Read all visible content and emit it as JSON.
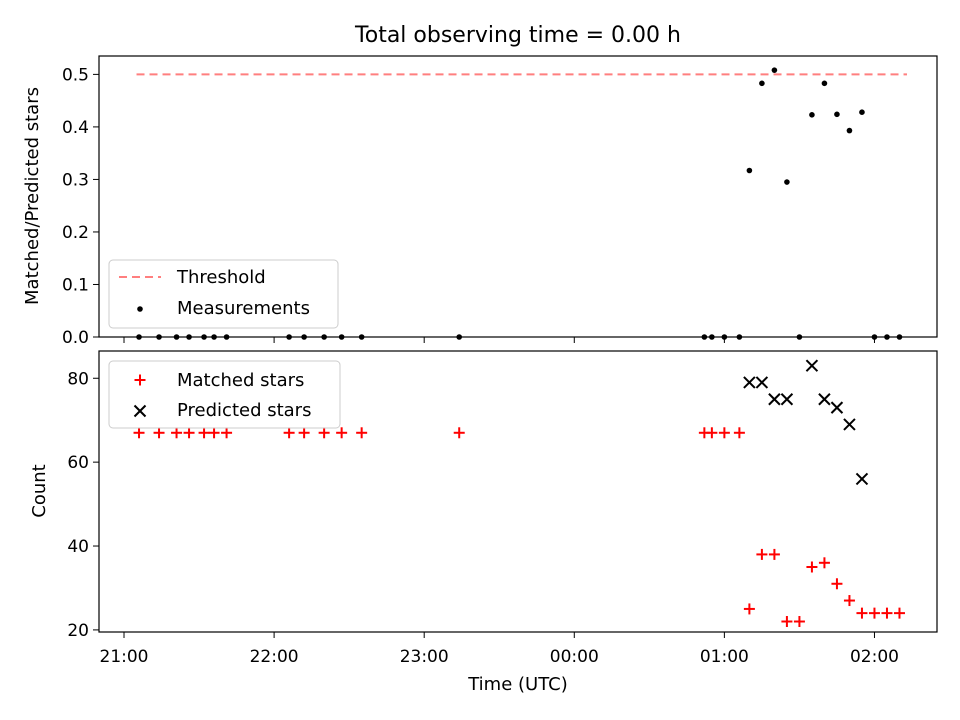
{
  "chart_data": [
    {
      "type": "scatter",
      "title": "Total observing time = 0.00 h",
      "xlabel": "",
      "ylabel": "Matched/Predicted stars",
      "ylim": [
        0,
        0.535
      ],
      "yticks": [
        0.0,
        0.1,
        0.2,
        0.3,
        0.4,
        0.5
      ],
      "ytick_labels": [
        "0.0",
        "0.1",
        "0.2",
        "0.3",
        "0.4",
        "0.5"
      ],
      "legend_position": "lower-left",
      "threshold": {
        "name": "Threshold",
        "y": 0.5,
        "x_start": "21:05",
        "x_end": "02:13",
        "color": "#ff7f7f",
        "style": "dashed"
      },
      "series": [
        {
          "name": "Measurements",
          "color": "#000000",
          "marker": "dot",
          "x": [
            "21:06",
            "21:14",
            "21:21",
            "21:26",
            "21:32",
            "21:36",
            "21:41",
            "22:06",
            "22:12",
            "22:20",
            "22:27",
            "22:35",
            "23:14",
            "00:52",
            "00:55",
            "01:00",
            "01:06",
            "01:10",
            "01:15",
            "01:20",
            "01:25",
            "01:30",
            "01:35",
            "01:40",
            "01:45",
            "01:50",
            "01:55",
            "02:00",
            "02:05",
            "02:10"
          ],
          "y": [
            0,
            0,
            0,
            0,
            0,
            0,
            0,
            0,
            0,
            0,
            0,
            0,
            0,
            0,
            0,
            0,
            0,
            0.317,
            0.483,
            0.508,
            0.295,
            0,
            0.423,
            0.483,
            0.424,
            0.393,
            0.428,
            0,
            0,
            0
          ]
        }
      ]
    },
    {
      "type": "scatter",
      "xlabel": "Time (UTC)",
      "ylabel": "Count",
      "ylim": [
        19.5,
        86.5
      ],
      "yticks": [
        20,
        40,
        60,
        80
      ],
      "ytick_labels": [
        "20",
        "40",
        "60",
        "80"
      ],
      "xticks": [
        "21:00",
        "22:00",
        "23:00",
        "00:00",
        "01:00",
        "02:00"
      ],
      "xtick_labels": [
        "21:00",
        "22:00",
        "23:00",
        "00:00",
        "01:00",
        "02:00"
      ],
      "xlim": [
        "20:50",
        "02:25"
      ],
      "legend_position": "upper-left",
      "series": [
        {
          "name": "Matched stars",
          "color": "#ff0000",
          "marker": "plus",
          "x": [
            "21:06",
            "21:14",
            "21:21",
            "21:26",
            "21:32",
            "21:36",
            "21:41",
            "22:06",
            "22:12",
            "22:20",
            "22:27",
            "22:35",
            "23:14",
            "00:52",
            "00:55",
            "01:00",
            "01:06",
            "01:10",
            "01:15",
            "01:20",
            "01:25",
            "01:30",
            "01:35",
            "01:40",
            "01:45",
            "01:50",
            "01:55",
            "02:00",
            "02:05",
            "02:10"
          ],
          "y": [
            67,
            67,
            67,
            67,
            67,
            67,
            67,
            67,
            67,
            67,
            67,
            67,
            67,
            67,
            67,
            67,
            67,
            25,
            38,
            38,
            22,
            22,
            35,
            36,
            31,
            27,
            24,
            24,
            24,
            24
          ]
        },
        {
          "name": "Predicted stars",
          "color": "#000000",
          "marker": "x",
          "x": [
            "01:10",
            "01:15",
            "01:20",
            "01:25",
            "01:35",
            "01:40",
            "01:45",
            "01:50",
            "01:55"
          ],
          "y": [
            79,
            79,
            75,
            75,
            83,
            75,
            73,
            69,
            56
          ]
        }
      ]
    }
  ]
}
